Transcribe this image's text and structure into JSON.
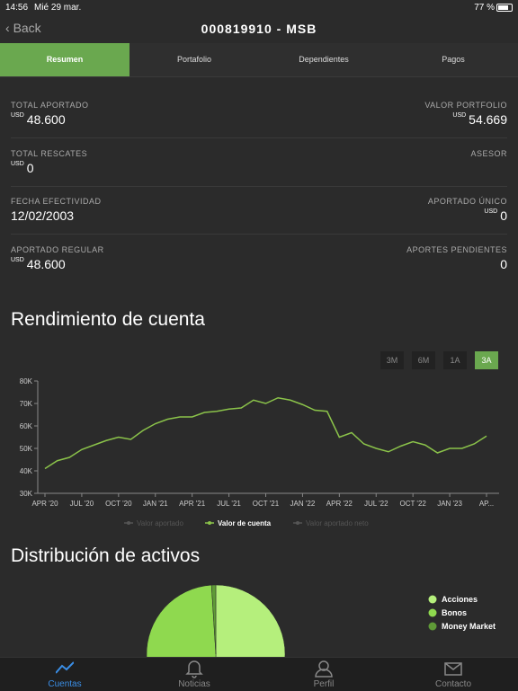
{
  "status_bar": {
    "time": "14:56",
    "date": "Mié 29 mar.",
    "battery": "77 %"
  },
  "nav": {
    "back": "Back",
    "title": "000819910 - MSB"
  },
  "tabs": [
    "Resumen",
    "Portafolio",
    "Dependientes",
    "Pagos"
  ],
  "summary": [
    {
      "label": "TOTAL APORTADO",
      "currency": "USD",
      "value": "48.600"
    },
    {
      "label": "VALOR PORTFOLIO",
      "currency": "USD",
      "value": "54.669"
    },
    {
      "label": "TOTAL RESCATES",
      "currency": "USD",
      "value": "0"
    },
    {
      "label": "ASESOR"
    },
    {
      "label": "FECHA EFECTIVIDAD",
      "value": "12/02/2003"
    },
    {
      "label": "APORTADO ÚNICO",
      "currency": "USD",
      "value": "0"
    },
    {
      "label": "APORTADO REGULAR",
      "currency": "USD",
      "value": "48.600"
    },
    {
      "label": "APORTES PENDIENTES",
      "value": "0"
    }
  ],
  "range_buttons": [
    "3M",
    "6M",
    "1A",
    "3A"
  ],
  "chart_data": [
    {
      "type": "line",
      "title": "Rendimiento de cuenta",
      "categories": [
        "APR '20",
        null,
        null,
        "JUL '20",
        null,
        null,
        "OCT '20",
        null,
        null,
        "JAN '21",
        null,
        null,
        "APR '21",
        null,
        null,
        "JUL '21",
        null,
        null,
        "OCT '21",
        null,
        null,
        "JAN '22",
        null,
        null,
        "APR '22",
        null,
        null,
        "JUL '22",
        null,
        null,
        "OCT '22",
        null,
        null,
        "JAN '23",
        null,
        null,
        "AP..."
      ],
      "series": [
        {
          "name": "Valor aportado",
          "color": "#666666",
          "hidden": true
        },
        {
          "name": "Valor de cuenta",
          "color": "#8bc34a",
          "values": [
            41000,
            44500,
            46000,
            49500,
            51500,
            53500,
            55000,
            54000,
            58000,
            61000,
            63000,
            64000,
            64000,
            66000,
            66500,
            67500,
            68000,
            71500,
            70000,
            72500,
            71500,
            69500,
            67000,
            66500,
            55000,
            57000,
            52000,
            50000,
            48500,
            51000,
            53000,
            51500,
            48000,
            50000,
            50000,
            52000,
            55500
          ]
        },
        {
          "name": "Valor aportado neto",
          "color": "#666666",
          "hidden": true
        }
      ],
      "ylim": [
        30000,
        80000
      ],
      "yticks": [
        {
          "value": 30000,
          "label": "30K"
        },
        {
          "value": 40000,
          "label": "40K"
        },
        {
          "value": 50000,
          "label": "50K"
        },
        {
          "value": 60000,
          "label": "60K"
        },
        {
          "value": 70000,
          "label": "70K"
        },
        {
          "value": 80000,
          "label": "80K"
        }
      ]
    },
    {
      "type": "pie",
      "title": "Distribución de activos",
      "categories": [
        "Acciones",
        "Bonos",
        "Money Market"
      ],
      "values": [
        50,
        49,
        1
      ],
      "colors": [
        "#b5ef7c",
        "#8fd94f",
        "#5f9a37"
      ]
    }
  ],
  "bottom_tabs": [
    "Cuentas",
    "Noticias",
    "Perfil",
    "Contacto"
  ]
}
